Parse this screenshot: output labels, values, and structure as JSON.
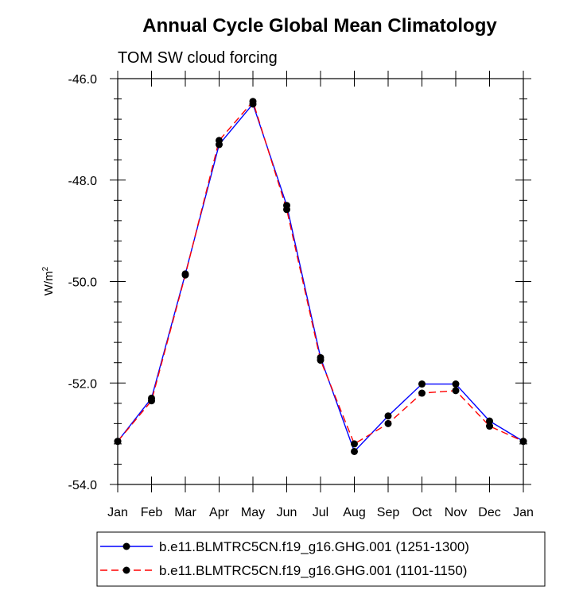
{
  "chart_data": {
    "type": "line",
    "title": "Annual Cycle Global Mean Climatology",
    "subtitle": "TOM SW cloud forcing",
    "ylabel": "W/m",
    "ylabel_superscript": "2",
    "xlabel": "",
    "ylim": [
      -54.0,
      -46.0
    ],
    "yticks": [
      "-46.0",
      "-48.0",
      "-50.0",
      "-52.0",
      "-54.0"
    ],
    "categories": [
      "Jan",
      "Feb",
      "Mar",
      "Apr",
      "May",
      "Jun",
      "Jul",
      "Aug",
      "Sep",
      "Oct",
      "Nov",
      "Dec",
      "Jan"
    ],
    "grid": false,
    "legend_position": "bottom",
    "series": [
      {
        "name": "b.e11.BLMTRC5CN.f19_g16.GHG.001 (1251-1300)",
        "color": "#0000ff",
        "dash": "solid",
        "values": [
          -53.15,
          -52.3,
          -49.85,
          -47.3,
          -46.5,
          -48.5,
          -51.5,
          -53.35,
          -52.65,
          -52.02,
          -52.02,
          -52.75,
          -53.15
        ]
      },
      {
        "name": "b.e11.BLMTRC5CN.f19_g16.GHG.001 (1101-1150)",
        "color": "#ff0000",
        "dash": "dashed",
        "values": [
          -53.15,
          -52.35,
          -49.87,
          -47.22,
          -46.45,
          -48.58,
          -51.55,
          -53.2,
          -52.8,
          -52.2,
          -52.15,
          -52.85,
          -53.15
        ]
      }
    ]
  }
}
